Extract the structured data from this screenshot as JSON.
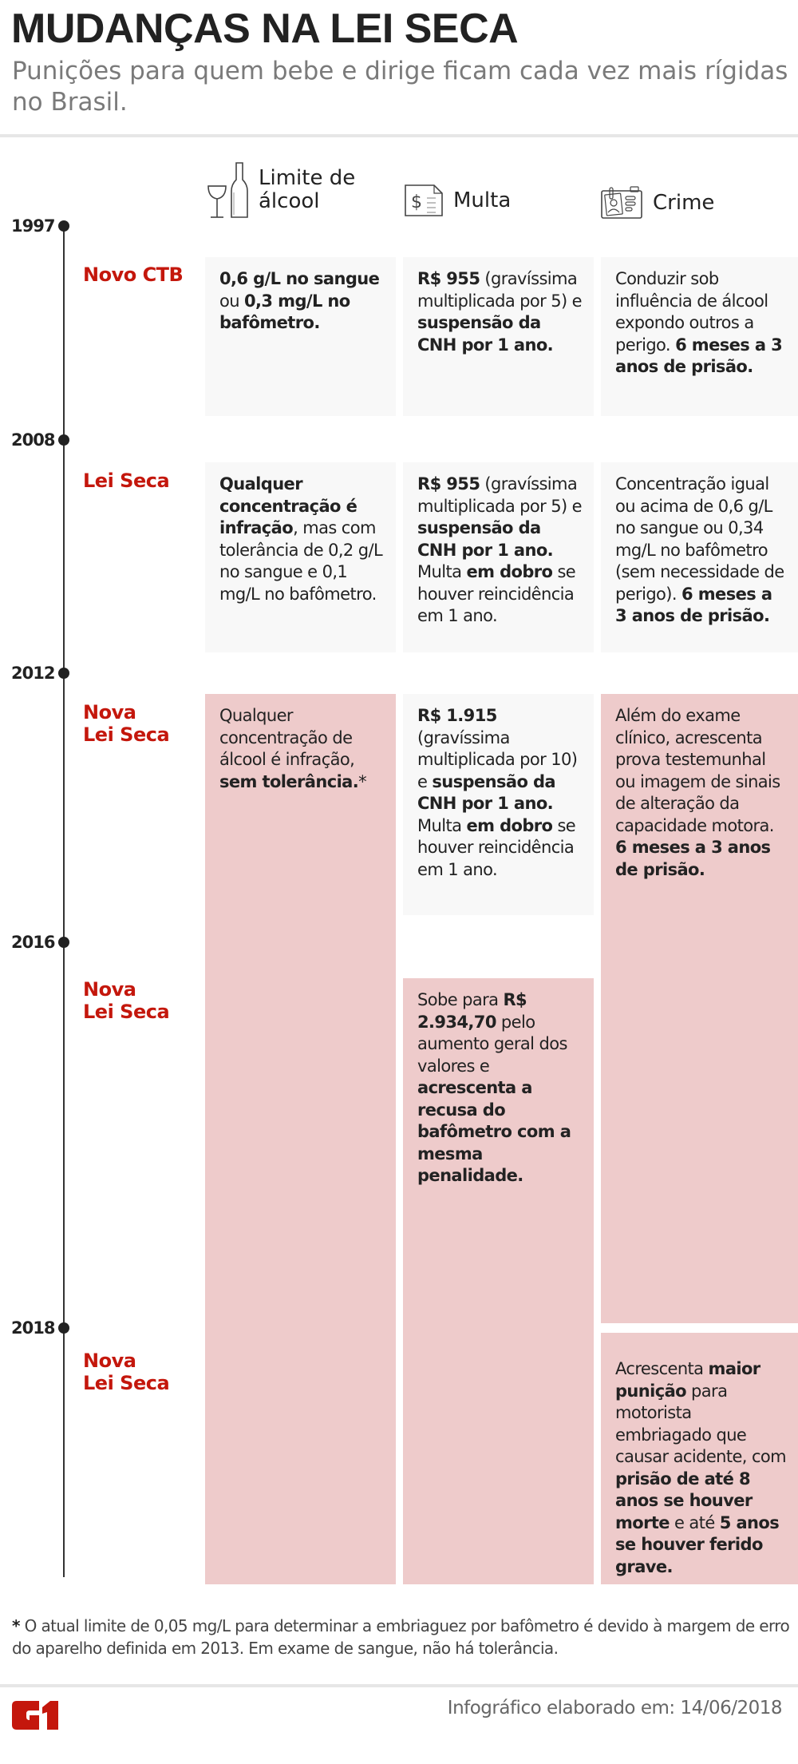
{
  "header": {
    "title": "MUDANÇAS NA LEI SECA",
    "subtitle": "Punições para quem bebe e dirige ficam cada vez mais rígidas no Brasil."
  },
  "columns": [
    {
      "label_line1": "Limite de",
      "label_line2": "álcool",
      "icon": "wine-bottle-icon"
    },
    {
      "label": "Multa",
      "icon": "money-document-icon"
    },
    {
      "label": "Crime",
      "icon": "id-card-icon"
    }
  ],
  "timeline": [
    {
      "year": "1997",
      "law": "Novo CTB"
    },
    {
      "year": "2008",
      "law": "Lei Seca"
    },
    {
      "year": "2012",
      "law_line1": "Nova",
      "law_line2": "Lei Seca"
    },
    {
      "year": "2016",
      "law_line1": "Nova",
      "law_line2": "Lei Seca"
    },
    {
      "year": "2018",
      "law_line1": "Nova",
      "law_line2": "Lei Seca"
    }
  ],
  "cells": {
    "y1997": {
      "limite": [
        {
          "t": "0,6 g/L no sangue",
          "b": true
        },
        {
          "t": " ou ",
          "b": false
        },
        {
          "t": "0,3 mg/L no bafômetro.",
          "b": true
        }
      ],
      "multa": [
        {
          "t": "R$ 955",
          "b": true
        },
        {
          "t": " (gravíssima multiplicada por 5) e ",
          "b": false
        },
        {
          "t": "suspensão da CNH por 1 ano.",
          "b": true
        }
      ],
      "crime": [
        {
          "t": "Conduzir sob influência de álcool expondo outros a perigo. ",
          "b": false
        },
        {
          "t": "6 meses a 3 anos de prisão.",
          "b": true
        }
      ]
    },
    "y2008": {
      "limite": [
        {
          "t": "Qualquer concentração é infração",
          "b": true
        },
        {
          "t": ", mas com tolerância de 0,2 g/L no sangue e 0,1 mg/L no bafômetro.",
          "b": false
        }
      ],
      "multa": [
        {
          "t": "R$ 955",
          "b": true
        },
        {
          "t": " (gravíssima multiplicada por 5) e ",
          "b": false
        },
        {
          "t": "suspensão da CNH por 1 ano.",
          "b": true
        },
        {
          "t": " Multa ",
          "b": false
        },
        {
          "t": "em dobro",
          "b": true
        },
        {
          "t": " se houver reincidência em 1 ano.",
          "b": false
        }
      ],
      "crime": [
        {
          "t": "Concentração igual ou acima de 0,6 g/L no sangue ou 0,34 mg/L no bafômetro (sem necessidade de perigo). ",
          "b": false
        },
        {
          "t": "6 meses a 3 anos de prisão.",
          "b": true
        }
      ]
    },
    "y2012": {
      "limite": [
        {
          "t": "Qualquer concentração de álcool é infração, ",
          "b": false
        },
        {
          "t": "sem tolerância.",
          "b": true
        },
        {
          "t": "*",
          "b": false
        }
      ],
      "multa": [
        {
          "t": "R$ 1.915",
          "b": true
        },
        {
          "t": " (gravíssima multiplicada por 10) e ",
          "b": false
        },
        {
          "t": "suspensão da CNH por 1 ano.",
          "b": true
        },
        {
          "t": " Multa ",
          "b": false
        },
        {
          "t": "em dobro",
          "b": true
        },
        {
          "t": " se houver reincidência em 1 ano.",
          "b": false
        }
      ],
      "crime": [
        {
          "t": "Além do exame clínico, acrescenta prova testemunhal ou imagem de sinais de alteração da capacidade motora. ",
          "b": false
        },
        {
          "t": "6 meses a 3 anos de prisão.",
          "b": true
        }
      ]
    },
    "y2016": {
      "multa": [
        {
          "t": "Sobe para ",
          "b": false
        },
        {
          "t": "R$ 2.934,70",
          "b": true
        },
        {
          "t": " pelo aumento geral dos valores e ",
          "b": false
        },
        {
          "t": "acrescenta a recusa do bafômetro com a mesma penalidade.",
          "b": true
        }
      ]
    },
    "y2018": {
      "crime": [
        {
          "t": "Acrescenta ",
          "b": false
        },
        {
          "t": "maior punição",
          "b": true
        },
        {
          "t": " para motorista embriagado que causar acidente, com ",
          "b": false
        },
        {
          "t": "prisão de até 8 anos se houver morte",
          "b": true
        },
        {
          "t": " e até ",
          "b": false
        },
        {
          "t": "5 anos se houver ferido grave.",
          "b": true
        }
      ]
    }
  },
  "footnote": {
    "star": "*",
    "text": " O atual limite de 0,05 mg/L para determinar a embriaguez por bafômetro é devido à margem de erro do aparelho definida em 2013. Em exame de sangue, não há tolerância."
  },
  "footer": {
    "logo": "G1",
    "credit": "Infográfico elaborado em:  14/06/2018"
  },
  "colors": {
    "accent_red": "#c4170c",
    "cell_grey": "#f8f8f8",
    "cell_pink": "#eecbcb",
    "text": "#222222",
    "subtitle": "#7a7a7a"
  }
}
